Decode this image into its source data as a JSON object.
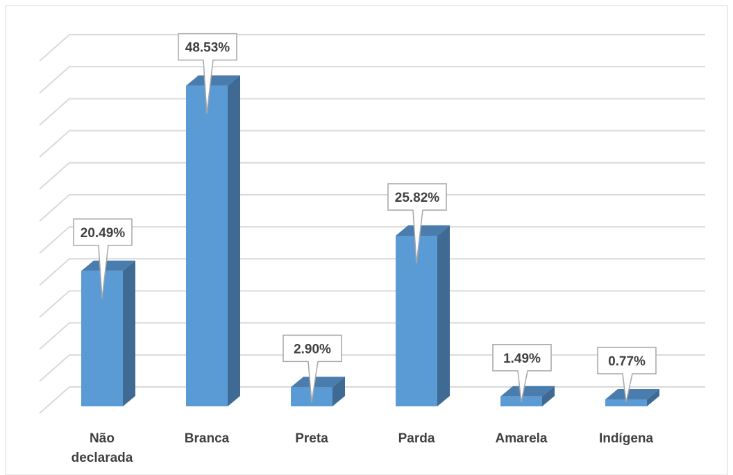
{
  "chart_data": {
    "type": "bar",
    "categories": [
      "Não declarada",
      "Branca",
      "Preta",
      "Parda",
      "Amarela",
      "Indígena"
    ],
    "category_lines": [
      [
        "Não",
        "declarada"
      ],
      [
        "Branca"
      ],
      [
        "Preta"
      ],
      [
        "Parda"
      ],
      [
        "Amarela"
      ],
      [
        "Indígena"
      ]
    ],
    "values": [
      20.49,
      48.53,
      2.9,
      25.82,
      1.49,
      0.77
    ],
    "data_labels": [
      "20.49%",
      "48.53%",
      "2.90%",
      "25.82%",
      "1.49%",
      "0.77%"
    ],
    "title": "",
    "xlabel": "",
    "ylabel": "",
    "ylim": [
      0,
      55
    ],
    "grid": true,
    "style": "3d-column",
    "colors": {
      "bar_front": "#5B9BD5",
      "bar_side": "#3E6A93",
      "bar_top": "#4A7DAE",
      "grid": "#D9D9D9",
      "label_text": "#404040",
      "callout_border": "#A6A6A6"
    }
  }
}
